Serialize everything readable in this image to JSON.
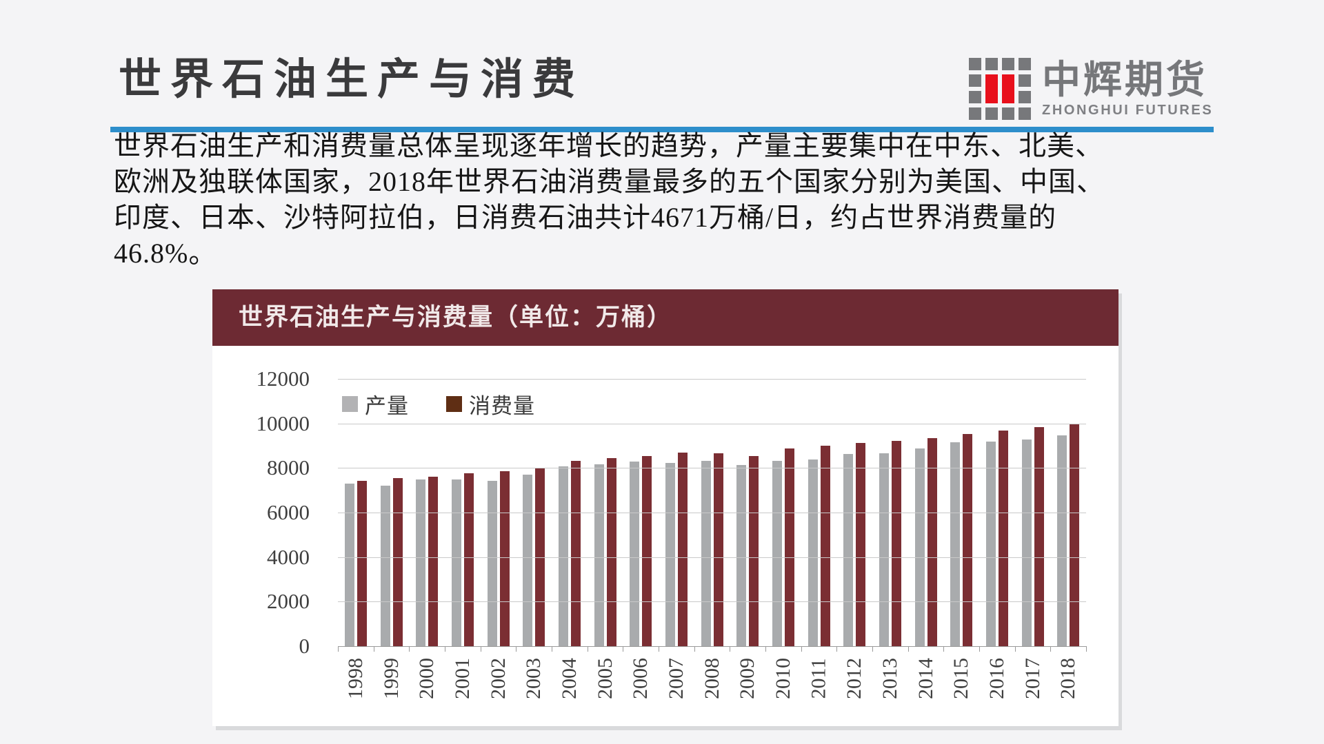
{
  "header": {
    "title": "世界石油生产与消费"
  },
  "logo": {
    "name": "中辉期货",
    "subtitle": "ZHONGHUI FUTURES"
  },
  "body": {
    "lines": [
      "世界石油生产和消费量总体呈现逐年增长的趋势，产量主要集中在中东、北美、",
      "欧洲及独联体国家，2018年世界石油消费量最多的五个国家分别为美国、中国、",
      "印度、日本、沙特阿拉伯，日消费石油共计4671万桶/日，约占世界消费量的",
      "46.8%。"
    ]
  },
  "colors": {
    "accent_blue": "#2d8ecb",
    "chart_header_maroon": "#6d2a33",
    "logo_red": "#e8101c",
    "logo_gray": "#77787b",
    "production_bar": "#a9abad",
    "consumption_bar": "#7b2e33",
    "production_legend": "#b2b2b4",
    "consumption_legend": "#5f2e14"
  },
  "chart_data": {
    "type": "bar",
    "title": "世界石油生产与消费量（单位：万桶）",
    "categories": [
      "1998",
      "1999",
      "2000",
      "2001",
      "2002",
      "2003",
      "2004",
      "2005",
      "2006",
      "2007",
      "2008",
      "2009",
      "2010",
      "2011",
      "2012",
      "2013",
      "2014",
      "2015",
      "2016",
      "2017",
      "2018"
    ],
    "series": [
      {
        "name": "产量",
        "color": "#a9abad",
        "legend_color": "#b2b2b4",
        "values": [
          7300,
          7200,
          7480,
          7480,
          7420,
          7700,
          8080,
          8180,
          8280,
          8230,
          8320,
          8120,
          8330,
          8380,
          8630,
          8650,
          8880,
          9150,
          9200,
          9270,
          9450
        ]
      },
      {
        "name": "消费量",
        "color": "#7b2e33",
        "legend_color": "#5f2e14",
        "values": [
          7430,
          7560,
          7600,
          7760,
          7850,
          8010,
          8310,
          8450,
          8550,
          8690,
          8650,
          8530,
          8870,
          9010,
          9120,
          9230,
          9330,
          9520,
          9680,
          9850,
          9990
        ]
      }
    ],
    "xlabel": "",
    "ylabel": "",
    "ylim": [
      0,
      12000
    ],
    "yticks": [
      0,
      2000,
      4000,
      6000,
      8000,
      10000,
      12000
    ],
    "grid": true,
    "legend_position": "inside-top-left"
  }
}
